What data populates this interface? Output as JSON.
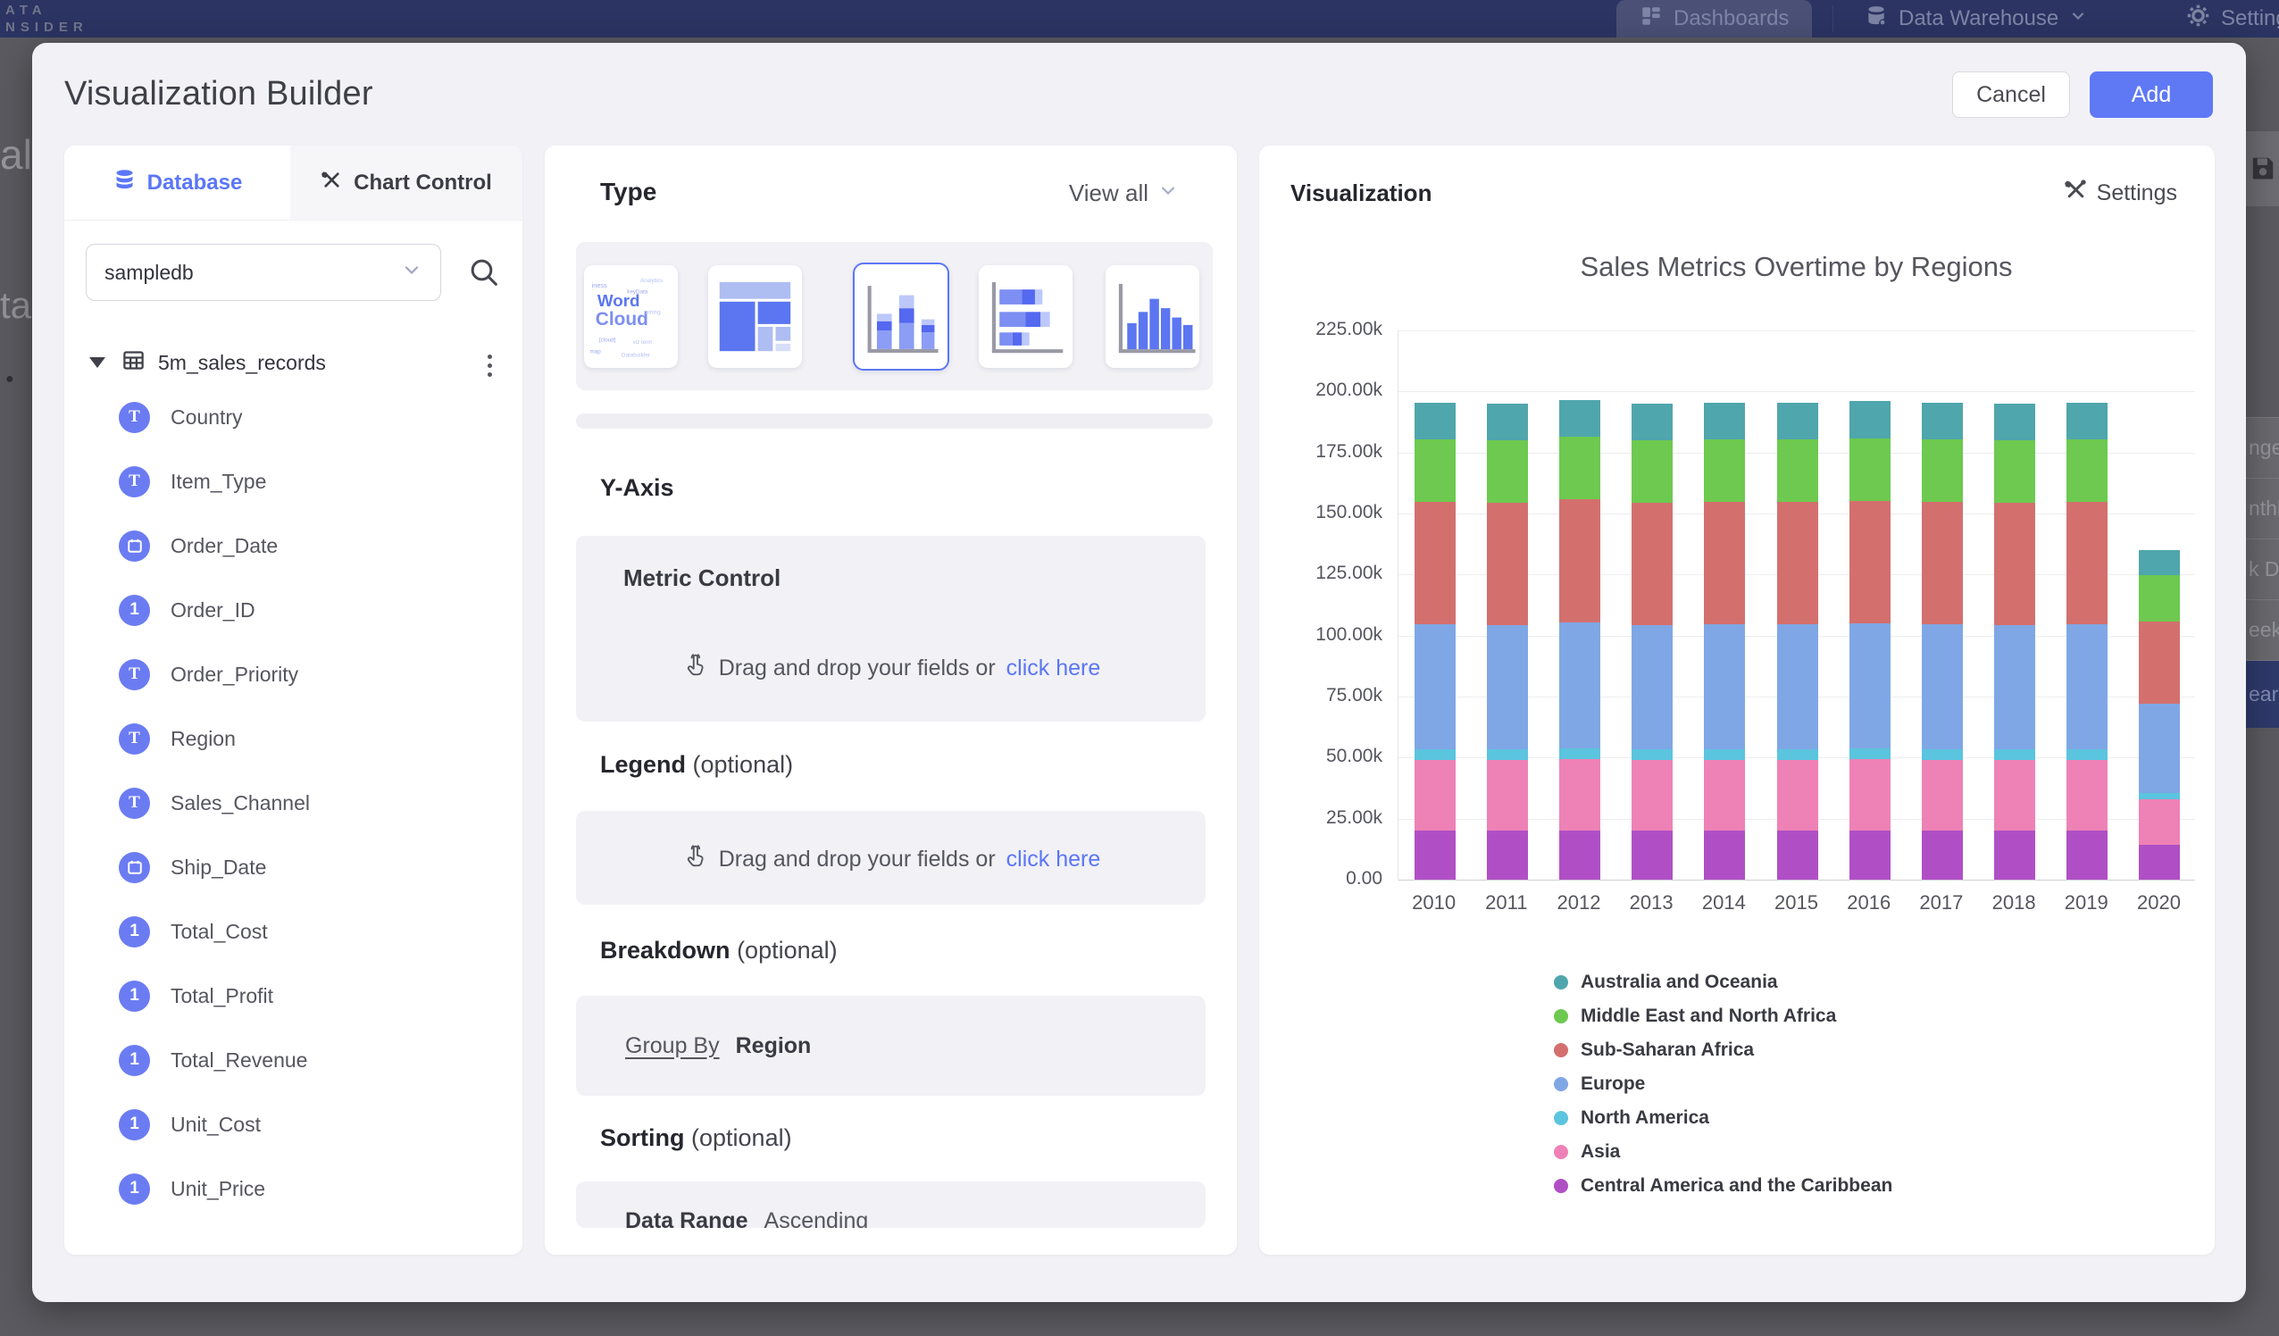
{
  "topbar": {
    "logo_line1": "ATA",
    "logo_line2": "NSIDER",
    "dashboards_label": "Dashboards",
    "warehouse_label": "Data Warehouse",
    "settings_label": "Settings"
  },
  "background_fragments": {
    "left_text_1": "al",
    "left_text_2": "ta",
    "bullet": "●",
    "right_list_items": [
      "nge",
      "nthly",
      "k Date",
      "eekly",
      "ear"
    ],
    "right_selected_item": "ear"
  },
  "modal": {
    "title": "Visualization Builder",
    "cancel_label": "Cancel",
    "add_label": "Add"
  },
  "left_panel": {
    "tab_database": "Database",
    "tab_chart_control": "Chart Control",
    "database_select_value": "sampledb",
    "table_name": "5m_sales_records",
    "fields": [
      {
        "name": "Country",
        "type": "text"
      },
      {
        "name": "Item_Type",
        "type": "text"
      },
      {
        "name": "Order_Date",
        "type": "date"
      },
      {
        "name": "Order_ID",
        "type": "number"
      },
      {
        "name": "Order_Priority",
        "type": "text"
      },
      {
        "name": "Region",
        "type": "text"
      },
      {
        "name": "Sales_Channel",
        "type": "text"
      },
      {
        "name": "Ship_Date",
        "type": "date"
      },
      {
        "name": "Total_Cost",
        "type": "number"
      },
      {
        "name": "Total_Profit",
        "type": "number"
      },
      {
        "name": "Total_Revenue",
        "type": "number"
      },
      {
        "name": "Unit_Cost",
        "type": "number"
      },
      {
        "name": "Unit_Price",
        "type": "number"
      }
    ]
  },
  "builder": {
    "type_label": "Type",
    "view_all_label": "View all",
    "thumbnails": [
      {
        "name": "word-cloud",
        "selected": false
      },
      {
        "name": "treemap",
        "selected": false
      },
      {
        "name": "stacked-column",
        "selected": true
      },
      {
        "name": "stacked-bar",
        "selected": false
      },
      {
        "name": "column",
        "selected": false
      }
    ],
    "y_axis": {
      "title": "Y-Axis",
      "card_title": "Metric Control",
      "drop_text": "Drag and drop your fields or",
      "drop_link": "click here"
    },
    "legend": {
      "title": "Legend",
      "optional": "(optional)",
      "drop_text": "Drag and drop your fields or",
      "drop_link": "click here"
    },
    "breakdown": {
      "title": "Breakdown",
      "optional": "(optional)",
      "group_by_label": "Group By",
      "group_by_value": "Region"
    },
    "sorting": {
      "title": "Sorting",
      "optional": "(optional)",
      "clipped_label": "Data Range",
      "clipped_value": "Ascending"
    }
  },
  "visualization": {
    "panel_title": "Visualization",
    "settings_label": "Settings"
  },
  "chart_data": {
    "type": "bar",
    "stacked": true,
    "title": "Sales Metrics Overtime by Regions",
    "categories": [
      "2010",
      "2011",
      "2012",
      "2013",
      "2014",
      "2015",
      "2016",
      "2017",
      "2018",
      "2019",
      "2020"
    ],
    "unit": "thousands",
    "ylim": [
      0,
      225
    ],
    "ytick_labels": [
      "0.00",
      "25.00k",
      "50.00k",
      "75.00k",
      "100.00k",
      "125.00k",
      "150.00k",
      "175.00k",
      "200.00k",
      "225.00k"
    ],
    "grid": true,
    "legend_position": "bottom",
    "series": [
      {
        "name": "Central America and the Caribbean",
        "color": "#B04FC5",
        "values": [
          20.2,
          20.1,
          20.3,
          20.1,
          20.2,
          20.2,
          20.3,
          20.2,
          20.1,
          20.2,
          14.1
        ]
      },
      {
        "name": "Asia",
        "color": "#EE82B6",
        "values": [
          29.0,
          28.9,
          29.1,
          28.9,
          29.0,
          29.0,
          29.0,
          29.0,
          28.9,
          29.0,
          18.8
        ]
      },
      {
        "name": "North America",
        "color": "#5BC4DE",
        "values": [
          4.4,
          4.4,
          4.5,
          4.4,
          4.4,
          4.4,
          4.5,
          4.4,
          4.4,
          4.4,
          2.6
        ]
      },
      {
        "name": "Europe",
        "color": "#7FA7E5",
        "values": [
          51.0,
          50.9,
          51.3,
          50.9,
          51.0,
          51.0,
          51.1,
          51.0,
          50.9,
          51.0,
          36.5
        ]
      },
      {
        "name": "Sub-Saharan Africa",
        "color": "#D3706E",
        "values": [
          50.2,
          50.1,
          50.5,
          50.2,
          50.2,
          50.3,
          50.4,
          50.3,
          50.1,
          50.2,
          33.8
        ]
      },
      {
        "name": "Middle East and North Africa",
        "color": "#6DC94F",
        "values": [
          25.6,
          25.5,
          25.7,
          25.5,
          25.5,
          25.6,
          25.6,
          25.6,
          25.5,
          25.6,
          18.9
        ]
      },
      {
        "name": "Australia and Oceania",
        "color": "#4FA6AC",
        "values": [
          15.0,
          15.0,
          15.1,
          15.0,
          15.0,
          15.0,
          15.1,
          15.0,
          15.0,
          15.0,
          10.4
        ]
      }
    ],
    "legend_order": [
      "Australia and Oceania",
      "Middle East and North Africa",
      "Sub-Saharan Africa",
      "Europe",
      "North America",
      "Asia",
      "Central America and the Caribbean"
    ]
  },
  "colors": {
    "accent": "#5B76F7",
    "topbar": "#2B3462",
    "modal_bg": "#F2F2F6",
    "card_bg": "#F1F1F6"
  }
}
